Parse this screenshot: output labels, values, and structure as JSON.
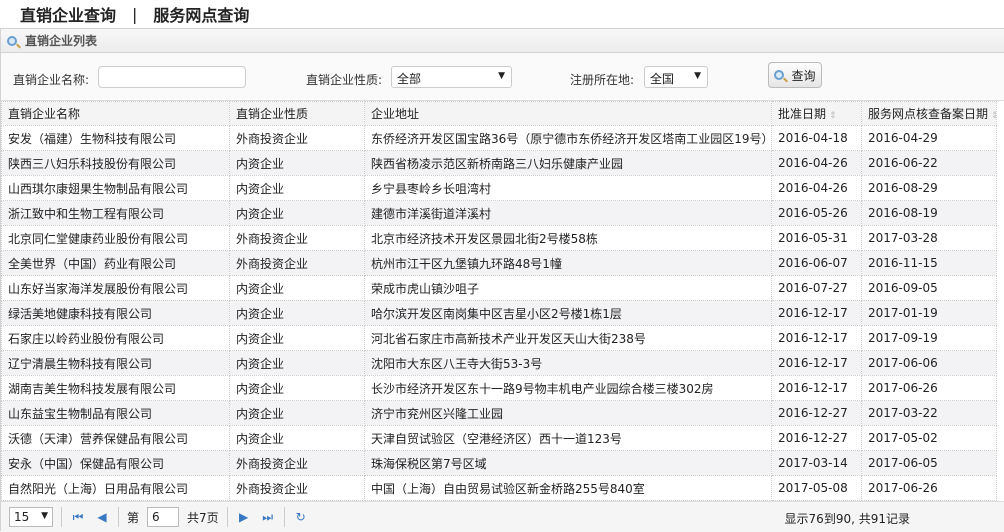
{
  "nav": {
    "tab1": "直销企业查询",
    "separator": "|",
    "tab2": "服务网点查询"
  },
  "panel": {
    "title": "直销企业列表"
  },
  "filters": {
    "name_label": "直销企业名称:",
    "name_value": "",
    "type_label": "直销企业性质:",
    "type_value": "全部",
    "region_label": "注册所在地:",
    "region_value": "全国",
    "search_label": "查询"
  },
  "table": {
    "headers": [
      "直销企业名称",
      "直销企业性质",
      "企业地址",
      "批准日期",
      "服务网点核查备案日期"
    ],
    "rows": [
      [
        "安发（福建）生物科技有限公司",
        "外商投资企业",
        "东侨经济开发区国宝路36号（原宁德市东侨经济开发区塔南工业园区19号）",
        "2016-04-18",
        "2016-04-29"
      ],
      [
        "陕西三八妇乐科技股份有限公司",
        "内资企业",
        "陕西省杨凌示范区新桥南路三八妇乐健康产业园",
        "2016-04-26",
        "2016-06-22"
      ],
      [
        "山西琪尔康翅果生物制品有限公司",
        "内资企业",
        "乡宁县枣岭乡长咀湾村",
        "2016-04-26",
        "2016-08-29"
      ],
      [
        "浙江致中和生物工程有限公司",
        "内资企业",
        "建德市洋溪街道洋溪村",
        "2016-05-26",
        "2016-08-19"
      ],
      [
        "北京同仁堂健康药业股份有限公司",
        "外商投资企业",
        "北京市经济技术开发区景园北街2号楼58栋",
        "2016-05-31",
        "2017-03-28"
      ],
      [
        "全美世界（中国）药业有限公司",
        "外商投资企业",
        "杭州市江干区九堡镇九环路48号1幢",
        "2016-06-07",
        "2016-11-15"
      ],
      [
        "山东好当家海洋发展股份有限公司",
        "内资企业",
        "荣成市虎山镇沙咀子",
        "2016-07-27",
        "2016-09-05"
      ],
      [
        "绿活美地健康科技有限公司",
        "内资企业",
        "哈尔滨开发区南岗集中区吉星小区2号楼1栋1层",
        "2016-12-17",
        "2017-01-19"
      ],
      [
        "石家庄以岭药业股份有限公司",
        "内资企业",
        "河北省石家庄市高新技术产业开发区天山大街238号",
        "2016-12-17",
        "2017-09-19"
      ],
      [
        "辽宁清晨生物科技有限公司",
        "内资企业",
        "沈阳市大东区八王寺大街53-3号",
        "2016-12-17",
        "2017-06-06"
      ],
      [
        "湖南吉美生物科技发展有限公司",
        "内资企业",
        "长沙市经济开发区东十一路9号物丰机电产业园综合楼三楼302房",
        "2016-12-17",
        "2017-06-26"
      ],
      [
        "山东益宝生物制品有限公司",
        "内资企业",
        "济宁市兖州区兴隆工业园",
        "2016-12-27",
        "2017-03-22"
      ],
      [
        "沃德（天津）营养保健品有限公司",
        "内资企业",
        "天津自贸试验区（空港经济区）西十一道123号",
        "2016-12-27",
        "2017-05-02"
      ],
      [
        "安永（中国）保健品有限公司",
        "外商投资企业",
        "珠海保税区第7号区域",
        "2017-03-14",
        "2017-06-05"
      ],
      [
        "自然阳光（上海）日用品有限公司",
        "外商投资企业",
        "中国（上海）自由贸易试验区新金桥路255号840室",
        "2017-05-08",
        "2017-06-26"
      ]
    ]
  },
  "pager": {
    "page_size": "15",
    "page_prefix": "第",
    "page": "6",
    "page_suffix": "共7页",
    "info": "显示76到90, 共91记录"
  }
}
